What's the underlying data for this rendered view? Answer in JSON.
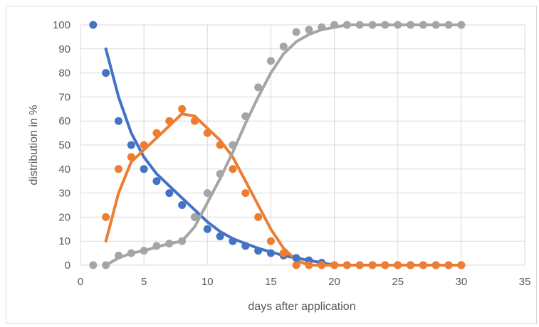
{
  "chart_data": {
    "type": "scatter",
    "title": "",
    "xlabel": "days after application",
    "ylabel": "distribution in %",
    "xlim": [
      0,
      35
    ],
    "ylim": [
      0,
      100
    ],
    "xticks": [
      0,
      5,
      10,
      15,
      20,
      25,
      30,
      35
    ],
    "yticks": [
      0,
      10,
      20,
      30,
      40,
      50,
      60,
      70,
      80,
      90,
      100
    ],
    "grid": true,
    "legend": "none",
    "series": [
      {
        "color": "#4472C4",
        "points_x": [
          1,
          2,
          3,
          4,
          5,
          6,
          7,
          8,
          9,
          10,
          11,
          12,
          13,
          14,
          15,
          16,
          17,
          18,
          19,
          20,
          21,
          22,
          23,
          24,
          25,
          26,
          27,
          28,
          29,
          30
        ],
        "points_y": [
          100,
          80,
          60,
          50,
          40,
          35,
          30,
          25,
          20,
          15,
          12,
          10,
          8,
          6,
          5,
          4,
          3,
          2,
          1,
          0,
          0,
          0,
          0,
          0,
          0,
          0,
          0,
          0,
          0,
          0
        ],
        "line_x": [
          2,
          3,
          4,
          5,
          6,
          7,
          8,
          9,
          10,
          11,
          12,
          13,
          14,
          15,
          16,
          17,
          18,
          19,
          20
        ],
        "line_y": [
          90,
          70,
          55,
          45,
          38,
          33,
          28,
          23,
          18,
          14,
          11,
          9,
          7,
          5.5,
          4,
          3,
          2,
          1,
          0
        ]
      },
      {
        "color": "#ED7D31",
        "points_x": [
          2,
          3,
          4,
          5,
          6,
          7,
          8,
          9,
          10,
          11,
          12,
          13,
          14,
          15,
          16,
          17,
          18,
          19,
          20,
          21,
          22,
          23,
          24,
          25,
          26,
          27,
          28,
          29,
          30
        ],
        "points_y": [
          20,
          40,
          45,
          50,
          55,
          60,
          65,
          60,
          55,
          50,
          40,
          30,
          20,
          10,
          5,
          0,
          0,
          0,
          0,
          0,
          0,
          0,
          0,
          0,
          0,
          0,
          0,
          0,
          0
        ],
        "line_x": [
          2,
          3,
          4,
          5,
          6,
          7,
          8,
          9,
          10,
          11,
          12,
          13,
          14,
          15,
          16,
          17,
          18,
          19,
          20,
          21,
          22,
          23,
          24,
          25,
          26,
          27,
          28,
          29,
          30
        ],
        "line_y": [
          10,
          30,
          43,
          48,
          53,
          58,
          63,
          62,
          57,
          52,
          45,
          35,
          25,
          15,
          7,
          2,
          0,
          0,
          0,
          0,
          0,
          0,
          0,
          0,
          0,
          0,
          0,
          0,
          0
        ]
      },
      {
        "color": "#A5A5A5",
        "points_x": [
          1,
          2,
          3,
          4,
          5,
          6,
          7,
          8,
          9,
          10,
          11,
          12,
          13,
          14,
          15,
          16,
          17,
          18,
          19,
          20,
          21,
          22,
          23,
          24,
          25,
          26,
          27,
          28,
          29,
          30
        ],
        "points_y": [
          0,
          0,
          4,
          5,
          6,
          8,
          9,
          10,
          20,
          30,
          38,
          50,
          62,
          74,
          85,
          91,
          97,
          98,
          99,
          100,
          100,
          100,
          100,
          100,
          100,
          100,
          100,
          100,
          100,
          100
        ],
        "line_x": [
          2,
          3,
          4,
          5,
          6,
          7,
          8,
          9,
          10,
          11,
          12,
          13,
          14,
          15,
          16,
          17,
          18,
          19,
          20,
          21,
          22,
          23,
          24,
          25,
          26,
          27,
          28,
          29,
          30
        ],
        "line_y": [
          0,
          3,
          5,
          6,
          7.5,
          9,
          10,
          16,
          26,
          36,
          47,
          59,
          70,
          80,
          88,
          93,
          96,
          98,
          99,
          100,
          100,
          100,
          100,
          100,
          100,
          100,
          100,
          100,
          100
        ]
      }
    ]
  }
}
